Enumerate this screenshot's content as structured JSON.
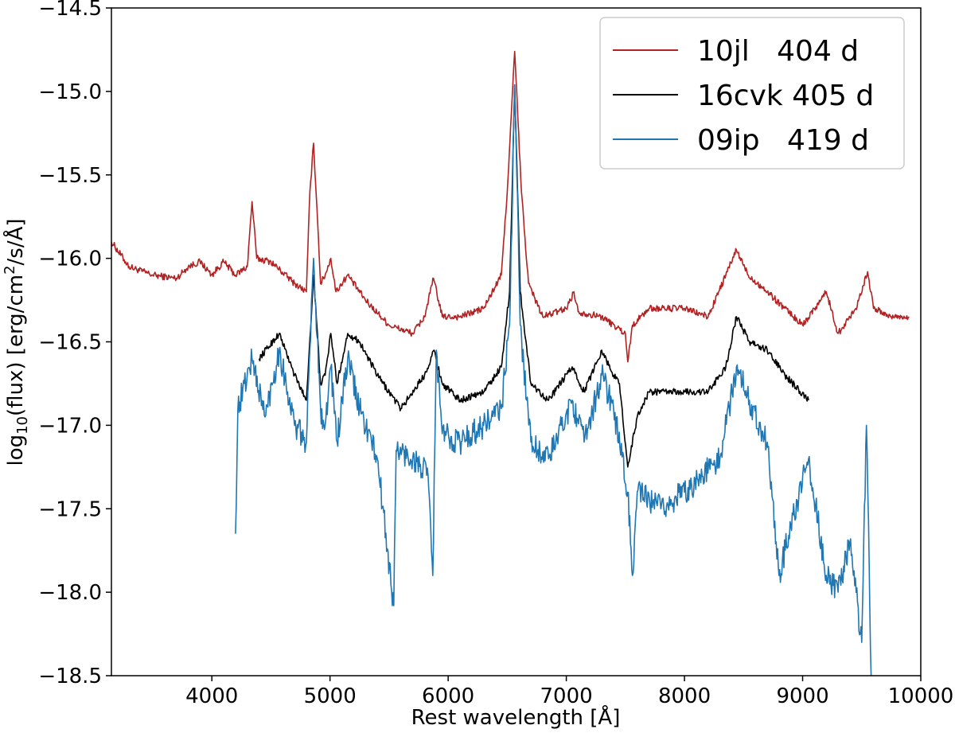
{
  "chart_data": {
    "type": "line",
    "title": "",
    "xlabel": "Rest wavelength [Å]",
    "ylabel_parts": {
      "a": "log",
      "sub": "10",
      "b": "(flux) [erg/cm",
      "sup": "2",
      "c": "/s/Å]"
    },
    "xlim": [
      3150,
      10000
    ],
    "ylim": [
      -18.5,
      -14.5
    ],
    "xticks": [
      4000,
      5000,
      6000,
      7000,
      8000,
      9000,
      10000
    ],
    "yticks": [
      -14.5,
      -15.0,
      -15.5,
      -16.0,
      -16.5,
      -17.0,
      -17.5,
      -18.0,
      -18.5
    ],
    "xtick_labels": [
      "4000",
      "5000",
      "6000",
      "7000",
      "8000",
      "9000",
      "10000"
    ],
    "ytick_labels": [
      "−14.5",
      "−15.0",
      "−15.5",
      "−16.0",
      "−16.5",
      "−17.0",
      "−17.5",
      "−18.0",
      "−18.5"
    ],
    "grid": false,
    "legend_position": "top-right",
    "series": [
      {
        "name": "10jl   404 d",
        "color": "#b22222",
        "noise": 0.02,
        "points": [
          [
            3150,
            -15.9
          ],
          [
            3300,
            -16.05
          ],
          [
            3500,
            -16.1
          ],
          [
            3700,
            -16.12
          ],
          [
            3800,
            -16.05
          ],
          [
            3900,
            -16.02
          ],
          [
            4000,
            -16.1
          ],
          [
            4100,
            -16.02
          ],
          [
            4200,
            -16.1
          ],
          [
            4300,
            -16.05
          ],
          [
            4340,
            -15.66
          ],
          [
            4380,
            -16.0
          ],
          [
            4500,
            -16.02
          ],
          [
            4700,
            -16.15
          ],
          [
            4800,
            -16.2
          ],
          [
            4830,
            -15.6
          ],
          [
            4861,
            -15.31
          ],
          [
            4890,
            -15.7
          ],
          [
            4920,
            -16.15
          ],
          [
            4959,
            -16.1
          ],
          [
            5007,
            -16.0
          ],
          [
            5050,
            -16.2
          ],
          [
            5150,
            -16.1
          ],
          [
            5300,
            -16.25
          ],
          [
            5500,
            -16.4
          ],
          [
            5700,
            -16.45
          ],
          [
            5800,
            -16.35
          ],
          [
            5876,
            -16.12
          ],
          [
            5950,
            -16.35
          ],
          [
            6100,
            -16.35
          ],
          [
            6300,
            -16.3
          ],
          [
            6450,
            -16.1
          ],
          [
            6500,
            -15.6
          ],
          [
            6563,
            -14.76
          ],
          [
            6620,
            -15.6
          ],
          [
            6680,
            -16.15
          ],
          [
            6800,
            -16.35
          ],
          [
            7000,
            -16.3
          ],
          [
            7065,
            -16.2
          ],
          [
            7100,
            -16.32
          ],
          [
            7300,
            -16.35
          ],
          [
            7500,
            -16.45
          ],
          [
            7520,
            -16.62
          ],
          [
            7560,
            -16.4
          ],
          [
            7700,
            -16.3
          ],
          [
            8000,
            -16.3
          ],
          [
            8200,
            -16.35
          ],
          [
            8350,
            -16.1
          ],
          [
            8440,
            -15.95
          ],
          [
            8540,
            -16.1
          ],
          [
            8700,
            -16.2
          ],
          [
            9000,
            -16.4
          ],
          [
            9100,
            -16.3
          ],
          [
            9200,
            -16.2
          ],
          [
            9300,
            -16.45
          ],
          [
            9450,
            -16.3
          ],
          [
            9550,
            -16.08
          ],
          [
            9600,
            -16.3
          ],
          [
            9750,
            -16.35
          ],
          [
            9900,
            -16.35
          ]
        ]
      },
      {
        "name": "16cvk 405 d",
        "color": "#000000",
        "noise": 0.02,
        "points": [
          [
            4400,
            -16.6
          ],
          [
            4570,
            -16.45
          ],
          [
            4700,
            -16.7
          ],
          [
            4800,
            -16.85
          ],
          [
            4861,
            -16.1
          ],
          [
            4920,
            -16.75
          ],
          [
            4959,
            -16.7
          ],
          [
            5007,
            -16.45
          ],
          [
            5060,
            -16.75
          ],
          [
            5150,
            -16.45
          ],
          [
            5250,
            -16.5
          ],
          [
            5400,
            -16.7
          ],
          [
            5600,
            -16.9
          ],
          [
            5800,
            -16.7
          ],
          [
            5880,
            -16.55
          ],
          [
            5950,
            -16.75
          ],
          [
            6100,
            -16.85
          ],
          [
            6300,
            -16.8
          ],
          [
            6450,
            -16.65
          ],
          [
            6520,
            -16.2
          ],
          [
            6563,
            -14.96
          ],
          [
            6610,
            -16.2
          ],
          [
            6700,
            -16.75
          ],
          [
            6850,
            -16.85
          ],
          [
            7050,
            -16.65
          ],
          [
            7150,
            -16.8
          ],
          [
            7300,
            -16.55
          ],
          [
            7400,
            -16.7
          ],
          [
            7450,
            -16.75
          ],
          [
            7520,
            -17.25
          ],
          [
            7600,
            -16.95
          ],
          [
            7700,
            -16.8
          ],
          [
            8000,
            -16.8
          ],
          [
            8200,
            -16.8
          ],
          [
            8350,
            -16.65
          ],
          [
            8440,
            -16.35
          ],
          [
            8550,
            -16.5
          ],
          [
            8700,
            -16.55
          ],
          [
            8850,
            -16.7
          ],
          [
            9050,
            -16.85
          ]
        ]
      },
      {
        "name": "09ip   419 d",
        "color": "#1f77b4",
        "noise": 0.08,
        "points": [
          [
            4200,
            -17.65
          ],
          [
            4220,
            -16.9
          ],
          [
            4340,
            -16.6
          ],
          [
            4450,
            -16.95
          ],
          [
            4570,
            -16.55
          ],
          [
            4700,
            -17.0
          ],
          [
            4800,
            -17.1
          ],
          [
            4861,
            -16.0
          ],
          [
            4920,
            -16.9
          ],
          [
            4959,
            -17.0
          ],
          [
            5007,
            -16.65
          ],
          [
            5060,
            -17.1
          ],
          [
            5150,
            -16.6
          ],
          [
            5250,
            -16.9
          ],
          [
            5400,
            -17.2
          ],
          [
            5540,
            -18.08
          ],
          [
            5560,
            -17.15
          ],
          [
            5700,
            -17.2
          ],
          [
            5830,
            -17.3
          ],
          [
            5870,
            -17.9
          ],
          [
            5900,
            -16.55
          ],
          [
            5950,
            -17.05
          ],
          [
            6100,
            -17.1
          ],
          [
            6300,
            -17.0
          ],
          [
            6450,
            -16.9
          ],
          [
            6520,
            -16.4
          ],
          [
            6563,
            -14.96
          ],
          [
            6610,
            -16.4
          ],
          [
            6700,
            -17.1
          ],
          [
            6850,
            -17.2
          ],
          [
            7050,
            -16.85
          ],
          [
            7150,
            -17.1
          ],
          [
            7300,
            -16.7
          ],
          [
            7400,
            -16.9
          ],
          [
            7520,
            -17.4
          ],
          [
            7560,
            -17.9
          ],
          [
            7600,
            -17.4
          ],
          [
            7800,
            -17.5
          ],
          [
            8000,
            -17.4
          ],
          [
            8300,
            -17.2
          ],
          [
            8440,
            -16.65
          ],
          [
            8550,
            -16.85
          ],
          [
            8700,
            -17.1
          ],
          [
            8800,
            -17.9
          ],
          [
            8900,
            -17.6
          ],
          [
            9050,
            -17.2
          ],
          [
            9200,
            -17.9
          ],
          [
            9300,
            -18.0
          ],
          [
            9400,
            -17.7
          ],
          [
            9500,
            -18.3
          ],
          [
            9540,
            -17.0
          ],
          [
            9580,
            -18.5
          ]
        ]
      }
    ]
  }
}
